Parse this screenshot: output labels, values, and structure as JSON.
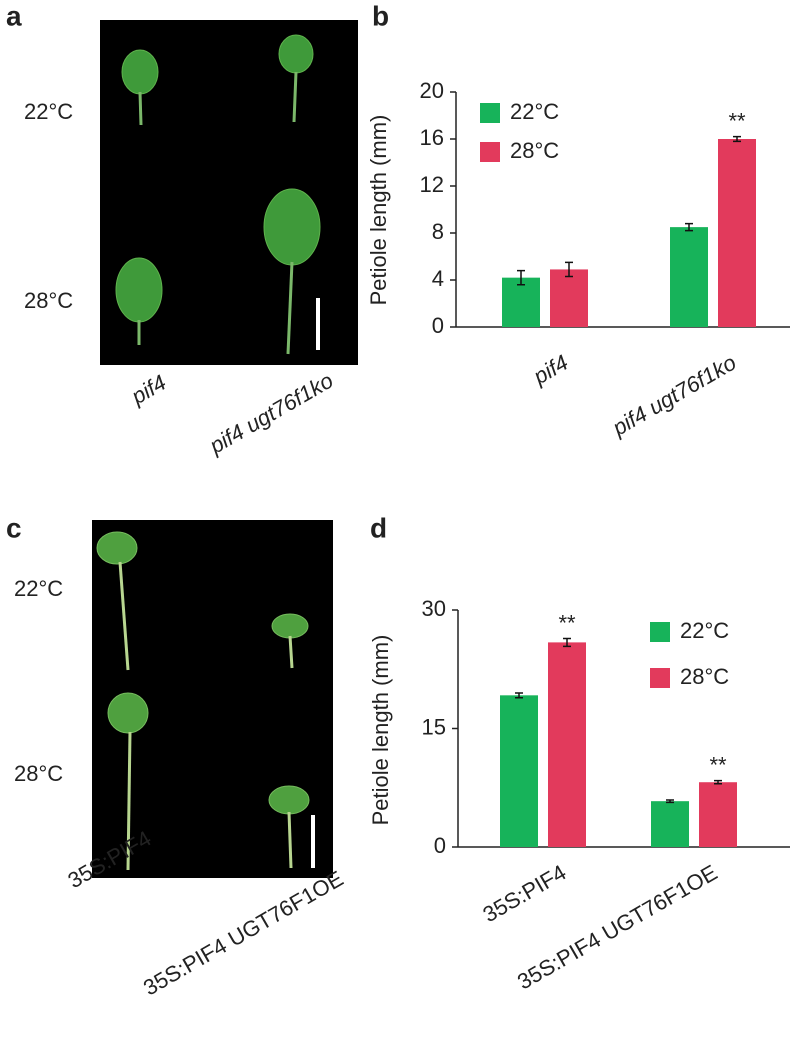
{
  "photo_panels": [
    {
      "letter": "a",
      "row_labels": [
        "22°C",
        "28°C"
      ],
      "genotypes": [
        "pif4",
        "pif4 ugt76f1ko"
      ]
    },
    {
      "letter": "c",
      "row_labels": [
        "22°C",
        "28°C"
      ],
      "genotypes": [
        "35S:PIF4",
        "35S:PIF4 UGT76F1OE"
      ]
    }
  ],
  "chart_data": [
    {
      "type": "bar",
      "panel": "b",
      "y_label": "Petiole length (mm)",
      "categories": [
        "pif4",
        "pif4 ugt76f1ko"
      ],
      "series": [
        {
          "name": "22°C",
          "color": "#17b35a",
          "values": [
            4.2,
            8.5
          ],
          "errors": [
            0.6,
            0.3
          ],
          "annotations": [
            null,
            null
          ]
        },
        {
          "name": "28°C",
          "color": "#e23a5c",
          "values": [
            4.9,
            16.0
          ],
          "errors": [
            0.6,
            0.2
          ],
          "annotations": [
            null,
            "**"
          ]
        }
      ],
      "ylim": [
        0,
        20
      ],
      "yticks": [
        0,
        4,
        8,
        12,
        16,
        20
      ]
    },
    {
      "type": "bar",
      "panel": "d",
      "y_label": "Petiole length (mm)",
      "categories": [
        "35S:PIF4",
        "35S:PIF4 UGT76F1OE"
      ],
      "series": [
        {
          "name": "22°C",
          "color": "#17b35a",
          "values": [
            19.2,
            5.8
          ],
          "errors": [
            0.3,
            0.15
          ],
          "annotations": [
            null,
            null
          ]
        },
        {
          "name": "28°C",
          "color": "#e23a5c",
          "values": [
            25.9,
            8.2
          ],
          "errors": [
            0.5,
            0.2
          ],
          "annotations": [
            "**",
            "**"
          ]
        }
      ],
      "ylim": [
        0,
        30
      ],
      "yticks": [
        0,
        15,
        30
      ]
    }
  ]
}
